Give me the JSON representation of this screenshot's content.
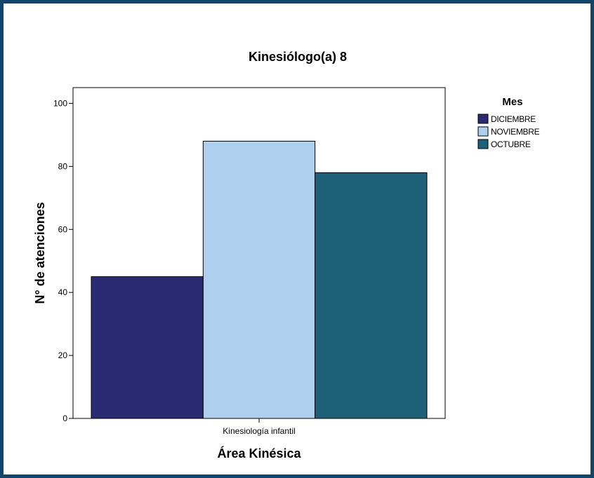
{
  "chart_data": {
    "type": "bar",
    "title": "Kinesiólogo(a) 8",
    "xlabel": "Área Kinésica",
    "ylabel": "N° de atenciones",
    "categories": [
      "Kinesiología infantil"
    ],
    "series": [
      {
        "name": "DICIEMBRE",
        "values": [
          45
        ],
        "color": "#2a2a72"
      },
      {
        "name": "NOVIEMBRE",
        "values": [
          88
        ],
        "color": "#aed0ee"
      },
      {
        "name": "OCTUBRE",
        "values": [
          78
        ],
        "color": "#1e6078"
      }
    ],
    "yticks": [
      0,
      20,
      40,
      60,
      80,
      100
    ],
    "ylim": [
      0,
      105
    ],
    "grid": false,
    "legend": {
      "title": "Mes",
      "placement": "right"
    }
  }
}
